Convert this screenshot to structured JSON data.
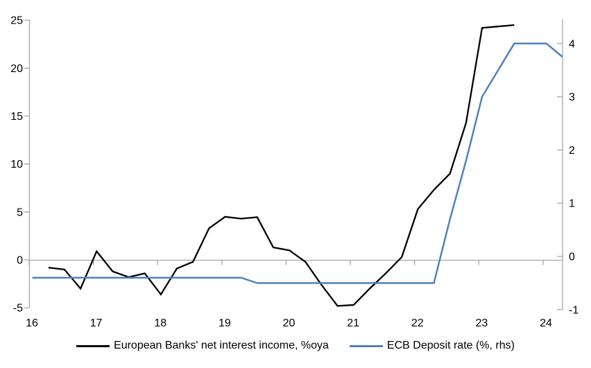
{
  "colors": {
    "axis_gray": "#A6A6A6",
    "nii_line": "#000000",
    "ecb_line": "#4F81BD",
    "background": "#FFFFFF"
  },
  "chart_data": {
    "type": "line",
    "title": "",
    "legend_position": "bottom",
    "grid": false,
    "zero_line": true,
    "x_axis": {
      "ticks": [
        16,
        17,
        18,
        19,
        20,
        21,
        22,
        23,
        24
      ],
      "range": [
        16,
        24.35
      ]
    },
    "y_axis_left": {
      "label": "",
      "ticks": [
        25,
        20,
        15,
        10,
        5,
        0,
        -5
      ],
      "range": [
        -5,
        25
      ]
    },
    "y_axis_right": {
      "label": "",
      "ticks": [
        4,
        3,
        2,
        1,
        0,
        -1
      ],
      "range": [
        -1,
        4.45
      ]
    },
    "series": [
      {
        "name": "European Banks' net interest income, %oya",
        "color": "#000000",
        "axis": "left",
        "x": [
          16.3,
          16.55,
          16.8,
          17.05,
          17.3,
          17.55,
          17.8,
          18.05,
          18.3,
          18.55,
          18.8,
          19.05,
          19.3,
          19.55,
          19.8,
          20.05,
          20.3,
          20.55,
          20.8,
          21.05,
          21.3,
          21.55,
          21.8,
          22.05,
          22.3,
          22.55,
          22.8,
          23.05,
          23.3,
          23.55
        ],
        "values": [
          -0.8,
          -1.0,
          -3.0,
          0.9,
          -1.2,
          -1.8,
          -1.4,
          -3.6,
          -0.9,
          -0.2,
          3.3,
          4.5,
          4.3,
          4.45,
          1.3,
          1.0,
          -0.2,
          -2.6,
          -4.8,
          -4.7,
          -3.0,
          -1.4,
          0.3,
          5.3,
          7.3,
          9.0,
          14.3,
          24.2,
          24.35,
          24.5
        ]
      },
      {
        "name": "ECB Deposit rate (%, rhs)",
        "color": "#4F81BD",
        "axis": "right",
        "x": [
          16.05,
          16.3,
          16.55,
          16.8,
          17.05,
          17.3,
          17.55,
          17.8,
          18.05,
          18.3,
          18.55,
          18.8,
          19.05,
          19.3,
          19.55,
          19.8,
          20.05,
          20.3,
          20.55,
          20.8,
          21.05,
          21.3,
          21.55,
          21.8,
          22.05,
          22.3,
          22.55,
          22.8,
          23.05,
          23.3,
          23.55,
          23.8,
          24.05,
          24.3
        ],
        "values": [
          -0.4,
          -0.4,
          -0.4,
          -0.4,
          -0.4,
          -0.4,
          -0.4,
          -0.4,
          -0.4,
          -0.4,
          -0.4,
          -0.4,
          -0.4,
          -0.4,
          -0.5,
          -0.5,
          -0.5,
          -0.5,
          -0.5,
          -0.5,
          -0.5,
          -0.5,
          -0.5,
          -0.5,
          -0.5,
          -0.5,
          0.7,
          1.8,
          3.0,
          3.5,
          4.0,
          4.0,
          4.0,
          3.75
        ]
      }
    ]
  }
}
